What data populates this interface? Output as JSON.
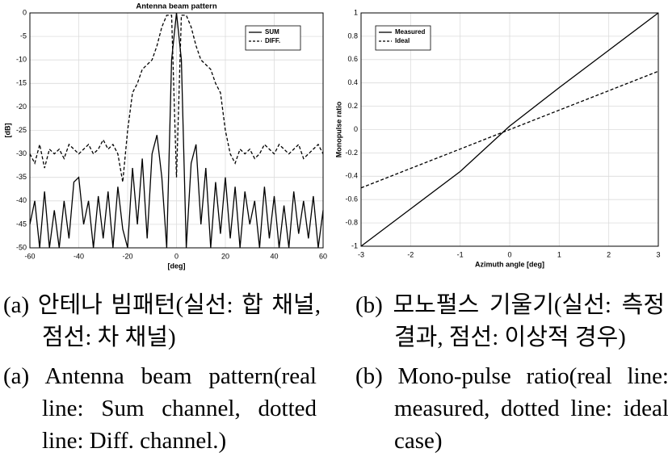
{
  "chart_data": [
    {
      "type": "line",
      "title": "Antenna beam pattern",
      "xlabel": "[deg]",
      "ylabel": "[dB]",
      "x": [
        -60,
        -58,
        -56,
        -54,
        -52,
        -50,
        -48,
        -46,
        -44,
        -42,
        -40,
        -38,
        -36,
        -34,
        -32,
        -30,
        -28,
        -26,
        -24,
        -22,
        -20,
        -18,
        -16,
        -14,
        -12,
        -10,
        -8,
        -6,
        -4,
        -2,
        0,
        2,
        4,
        6,
        8,
        10,
        12,
        14,
        16,
        18,
        20,
        22,
        24,
        26,
        28,
        30,
        32,
        34,
        36,
        38,
        40,
        42,
        44,
        46,
        48,
        50,
        52,
        54,
        56,
        58,
        60
      ],
      "series": [
        {
          "name": "SUM",
          "color": "#000000",
          "style": "solid",
          "values": [
            -45,
            -40,
            -50,
            -38,
            -50,
            -42,
            -50,
            -40,
            -48,
            -36,
            -35,
            -45,
            -40,
            -50,
            -39,
            -48,
            -38,
            -50,
            -37,
            -46,
            -50,
            -33,
            -45,
            -31,
            -48,
            -30,
            -26,
            -35,
            -50,
            -10,
            0,
            -10,
            -50,
            -32,
            -28,
            -45,
            -33,
            -50,
            -36,
            -47,
            -35,
            -48,
            -37,
            -50,
            -38,
            -45,
            -40,
            -50,
            -37,
            -48,
            -39,
            -50,
            -41,
            -50,
            -38,
            -47,
            -40,
            -48,
            -39,
            -50,
            -42
          ]
        },
        {
          "name": "DIFF.",
          "color": "#000000",
          "style": "dashed",
          "values": [
            -30,
            -32,
            -28,
            -33,
            -29,
            -30,
            -29,
            -31,
            -28,
            -29,
            -30,
            -29,
            -28,
            -30,
            -29,
            -27,
            -29,
            -28,
            -30,
            -36,
            -25,
            -17,
            -15,
            -12,
            -11,
            -10,
            -7,
            -3,
            -0.5,
            -0.5,
            -35,
            -0.5,
            -0.5,
            -3,
            -7,
            -10,
            -11,
            -12,
            -15,
            -17,
            -25,
            -30,
            -32,
            -29,
            -30,
            -29,
            -31,
            -30,
            -28,
            -29,
            -30,
            -28,
            -29,
            -30,
            -29,
            -28,
            -31,
            -30,
            -29,
            -28,
            -30
          ]
        }
      ],
      "xlim": [
        -60,
        60
      ],
      "xticks": [
        -60,
        -40,
        -20,
        0,
        20,
        40,
        60
      ],
      "ylim": [
        -50,
        0
      ],
      "yticks": [
        0,
        -5,
        -10,
        -15,
        -20,
        -25,
        -30,
        -35,
        -40,
        -45,
        -50
      ],
      "grid": true,
      "legend": "upper right"
    },
    {
      "type": "line",
      "xlabel": "Azimuth angle [deg]",
      "ylabel": "Monopulse ratio",
      "x": [
        -3,
        -2,
        -1,
        0,
        1,
        2,
        3
      ],
      "series": [
        {
          "name": "Measured",
          "color": "#000000",
          "style": "solid",
          "values": [
            -1,
            -0.68,
            -0.36,
            0.03,
            0.36,
            0.68,
            1
          ]
        },
        {
          "name": "Ideal",
          "color": "#000000",
          "style": "dashed",
          "values": [
            -0.5,
            -0.333,
            -0.167,
            0,
            0.167,
            0.333,
            0.5
          ]
        }
      ],
      "xlim": [
        -3,
        3
      ],
      "xticks": [
        -3,
        -2,
        -1,
        0,
        1,
        2,
        3
      ],
      "ylim": [
        -1,
        1
      ],
      "yticks": [
        1,
        0.8,
        0.6,
        0.4,
        0.2,
        0,
        -0.2,
        -0.4,
        -0.6,
        -0.8,
        -1
      ],
      "grid": true,
      "legend": "upper left"
    }
  ],
  "captions": {
    "a_korean": "(a) 안테나 빔패턴(실선: 합 채널, 점선: 차 채널)",
    "b_korean": "(b) 모노펄스 기울기(실선: 측정결과, 점선: 이상적 경우)",
    "a_english": "(a) Antenna beam pattern(real line: Sum channel, dotted line: Diff. channel.)",
    "b_english": "(b) Mono-pulse ratio(real line: measured, dotted line: ideal case)"
  }
}
